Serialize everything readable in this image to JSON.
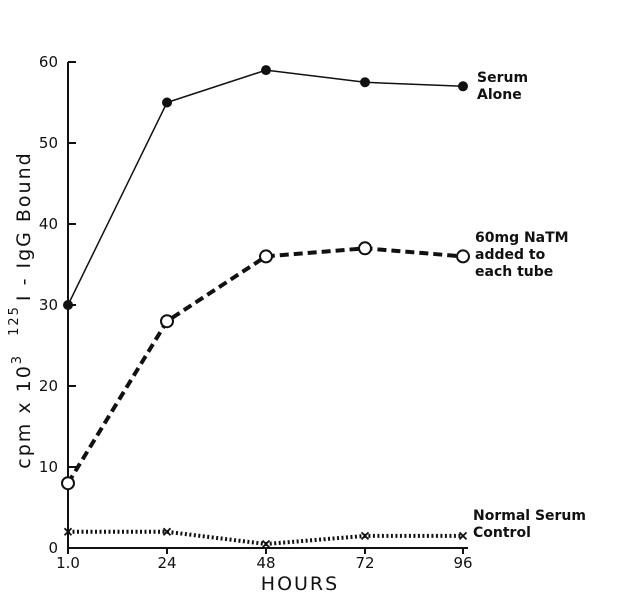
{
  "chart_data": {
    "type": "line",
    "title": "",
    "xlabel": "HOURS",
    "ylabel": "cpm  x  10³  ¹²⁵I - IgG Bound",
    "ylabel_parts": {
      "main": "cpm x 10",
      "exp": "3",
      "iso": "125",
      "rest": "I - IgG Bound"
    },
    "x": [
      1.0,
      24,
      48,
      72,
      96
    ],
    "xtick_labels": [
      "1.0",
      "24",
      "48",
      "72",
      "96"
    ],
    "ylim": [
      0,
      60
    ],
    "yticks": [
      0,
      10,
      20,
      30,
      40,
      50,
      60
    ],
    "ytick_labels": [
      "0",
      "10",
      "20",
      "30",
      "40",
      "50",
      "60"
    ],
    "grid": false,
    "series": [
      {
        "name": "Serum Alone",
        "label_lines": [
          "Serum",
          "Alone"
        ],
        "values": [
          30,
          55,
          59,
          57.5,
          57
        ],
        "marker": "filled-circle",
        "line_style": "solid",
        "color": "#111111"
      },
      {
        "name": "60mg NaTM added to each tube",
        "label_lines": [
          "60mg NaTM",
          "added to",
          "each tube"
        ],
        "values": [
          8,
          28,
          36,
          37,
          36
        ],
        "marker": "open-circle",
        "line_style": "dashed",
        "color": "#111111"
      },
      {
        "name": "Normal Serum Control",
        "label_lines": [
          "Normal Serum",
          "Control"
        ],
        "values": [
          2,
          2,
          0.5,
          1.5,
          1.5
        ],
        "marker": "x",
        "line_style": "dotted",
        "color": "#111111"
      }
    ]
  }
}
